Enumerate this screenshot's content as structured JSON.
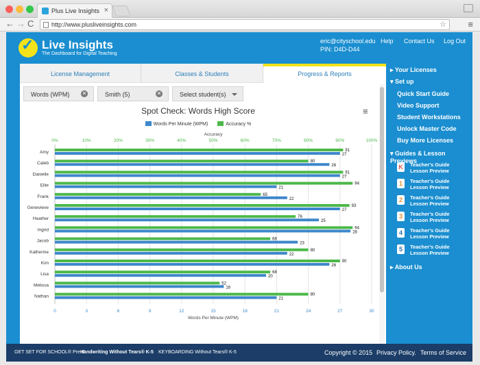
{
  "browser": {
    "tab_title": "Plus Live Insights",
    "tab_close": "×",
    "url": "http://www.plusliveinsights.com",
    "back": "←",
    "forward": "→",
    "reload": "C",
    "star": "☆",
    "menu": "≡"
  },
  "header": {
    "brand": "Live Insights",
    "tagline": "The Dashboard for Digital Teaching",
    "email": "eric@cityschool.edu",
    "pin": "PIN:  D4D-D44",
    "links": [
      "Help",
      "Contact Us",
      "Log Out"
    ]
  },
  "tabs": [
    {
      "label": "License Management"
    },
    {
      "label": "Classes & Students"
    },
    {
      "label": "Progress & Reports"
    }
  ],
  "filters": {
    "metric": "Words (WPM)",
    "class": "Smith (5)",
    "student_placeholder": "Select student(s)"
  },
  "chart_data": {
    "type": "bar",
    "orientation": "horizontal",
    "title": "Spot Check: Words High Score",
    "categories": [
      "Amy",
      "Caleb",
      "Danielle",
      "Ellie",
      "Frank",
      "Genevieve",
      "Heather",
      "Ingrid",
      "Jacob",
      "Katherine",
      "Kim",
      "Lisa",
      "Melissa",
      "Nathan"
    ],
    "series": [
      {
        "name": "Accuracy %",
        "color": "#4cb84a",
        "axis": "top",
        "values": [
          91,
          80,
          91,
          94,
          65,
          93,
          76,
          94,
          68,
          80,
          90,
          68,
          52,
          80
        ]
      },
      {
        "name": "Words Per Minute (WPM)",
        "color": "#3d87cc",
        "axis": "bottom",
        "values": [
          27,
          26,
          27,
          21,
          22,
          27,
          25,
          28,
          23,
          22,
          26,
          20,
          16,
          21
        ]
      }
    ],
    "top_axis": {
      "label": "Accuracy",
      "range": [
        0,
        100
      ],
      "ticks": [
        "0%",
        "10%",
        "20%",
        "30%",
        "40%",
        "50%",
        "60%",
        "70%",
        "80%",
        "90%",
        "100%"
      ],
      "tick_color": "#4cb84a"
    },
    "bottom_axis": {
      "label": "Words Per Minute (WPM)",
      "range": [
        0,
        30
      ],
      "ticks": [
        "0",
        "3",
        "6",
        "9",
        "12",
        "15",
        "18",
        "21",
        "24",
        "27",
        "30"
      ],
      "tick_color": "#3d87cc"
    },
    "grid": true,
    "legend_position": "top"
  },
  "sidebar": {
    "your_licenses": "Your Licenses",
    "set_up": "Set up",
    "setup_items": [
      "Quick Start Guide",
      "Video Support",
      "Student Workstations",
      "Unlock Master Code",
      "Buy More Licenses"
    ],
    "guides_heading": "Guides & Lesson Previews",
    "guides": [
      {
        "grade": "K",
        "color": "#d9534f",
        "line1": "Teacher's Guide",
        "line2": "Lesson Preview"
      },
      {
        "grade": "1",
        "color": "#e38a2c",
        "line1": "Teacher's Guide",
        "line2": "Lesson Preview"
      },
      {
        "grade": "2",
        "color": "#e38a2c",
        "line1": "Teacher's Guide",
        "line2": "Lesson Preview"
      },
      {
        "grade": "3",
        "color": "#e38a2c",
        "line1": "Teacher's Guide",
        "line2": "Lesson Preview"
      },
      {
        "grade": "4",
        "color": "#2a6db0",
        "line1": "Teacher's Guide",
        "line2": "Lesson Preview"
      },
      {
        "grade": "5",
        "color": "#2a6db0",
        "line1": "Teacher's Guide",
        "line2": "Lesson Preview"
      }
    ],
    "about": "About Us"
  },
  "footer": {
    "brands": [
      "GET SET FOR SCHOOL® Pre-K",
      "Handwriting Without Tears® K-5",
      "KEYBOARDING Without Tears® K-5"
    ],
    "copyright": "Copyright © 2015",
    "privacy": "Privacy Policy.",
    "terms": "Terms of Service"
  },
  "colors": {
    "brand_blue": "#1a8ed0",
    "accent_yellow": "#f5e21a",
    "footer_navy": "#1b3d67"
  }
}
